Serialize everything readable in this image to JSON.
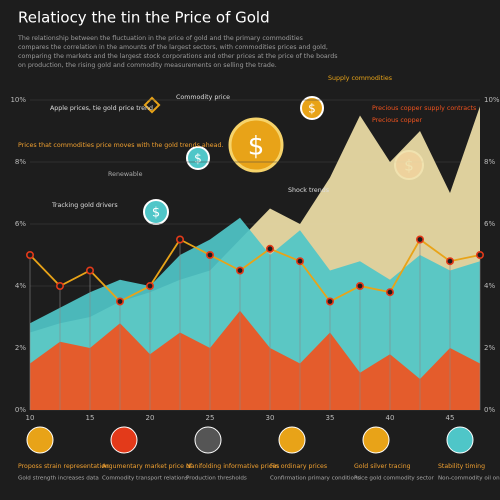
{
  "header": {
    "title": "Relatiocy the tin the Price of Gold",
    "lines": [
      "The relationship between the fluctuation in the price of gold and the primary commodities",
      "compares the correlation in the amounts of the largest sectors, with commodities prices and gold,",
      "comparing the markets and the largest stock corporations and other prices at the price of the boards",
      "on production, the rising gold and commodity measurements on selling the trade."
    ]
  },
  "callouts": [
    "Apple prices, tie gold price trend",
    "Commodity price",
    "Prices that commodities price moves with the gold trends ahead.",
    "Tracking gold drivers",
    "Renewable",
    "Supply commodities",
    "Precious copper supply contracts",
    "Precious copper",
    "Shock trends"
  ],
  "chart_data": {
    "type": "area",
    "categories": [
      "10",
      null,
      "15",
      null,
      "20",
      null,
      "25",
      null,
      "30",
      null,
      "35",
      null,
      "40",
      null,
      "45",
      null
    ],
    "series": [
      {
        "color": "#efe0a8",
        "values": [
          2.5,
          2.8,
          3.0,
          3.5,
          3.8,
          4.2,
          4.5,
          5.5,
          6.5,
          6.0,
          7.5,
          9.5,
          8.0,
          9.0,
          7.0,
          9.8
        ]
      },
      {
        "color": "#4fc6c8",
        "values": [
          2.8,
          3.3,
          3.8,
          4.2,
          4.0,
          5.0,
          5.5,
          6.2,
          5.0,
          5.8,
          4.5,
          4.8,
          4.2,
          5.0,
          4.5,
          4.8
        ]
      },
      {
        "color": "#f0531e",
        "values": [
          1.5,
          2.2,
          2.0,
          2.8,
          1.8,
          2.5,
          2.0,
          3.2,
          2.0,
          1.5,
          2.5,
          1.2,
          1.8,
          1.0,
          2.0,
          1.5
        ]
      },
      {
        "color": "#e8a318",
        "line": true,
        "values": [
          5.0,
          4.0,
          4.5,
          3.5,
          4.0,
          5.5,
          5.0,
          4.5,
          5.2,
          4.8,
          3.5,
          4.0,
          3.8,
          5.5,
          4.8,
          5.0
        ]
      }
    ],
    "ylim": [
      0,
      10
    ],
    "yticks": [
      {
        "value": 0,
        "label": "0%"
      },
      {
        "value": 2,
        "label": "2%"
      },
      {
        "value": 4,
        "label": "4%"
      },
      {
        "value": 6,
        "label": "6%"
      },
      {
        "value": 8,
        "label": "8%"
      },
      {
        "value": 10,
        "label": "10%"
      }
    ],
    "grid": true
  },
  "footer": {
    "items": [
      {
        "title": "Proposs strain representation",
        "text": "Gold strength increases data"
      },
      {
        "title": "Argumentary market price of",
        "text": "Commodity transport relations"
      },
      {
        "title": "Nanifolding informative prices",
        "text": "Production thresholds"
      },
      {
        "title": "Fin ordinary prices",
        "text": "Confirmation primary conditions"
      },
      {
        "title": "Gold silver tracing",
        "text": "Price gold commodity sector"
      },
      {
        "title": "Stability timing",
        "text": "Non-commodity oil on all"
      }
    ]
  }
}
